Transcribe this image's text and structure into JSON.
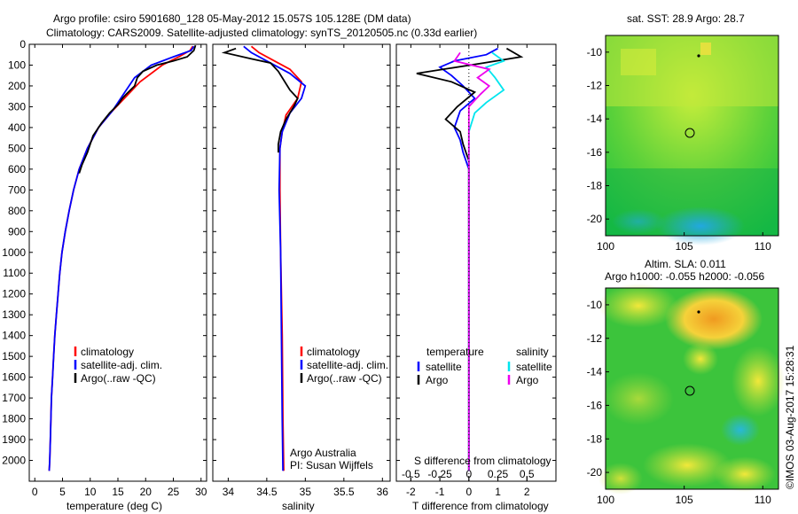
{
  "header": {
    "line1": "Argo profile: csiro 5901680_128 05-May-2012 15.057S 105.128E (DM data)",
    "line2": "Climatology: CARS2009. Satellite-adjusted climatology: synTS_20120505.nc (0.33d earlier)"
  },
  "credit": "Argo Australia\nPI: Susan Wijffels",
  "imos_stamp": "©IMOS 03-Aug-2017 15:28:31",
  "colors": {
    "climatology": "#ff0000",
    "satellite": "#0000ff",
    "argo": "#000000",
    "sal_satellite": "#00e5ee",
    "sal_argo": "#ee00ee"
  },
  "chart_data": [
    {
      "type": "line",
      "panel": "temperature",
      "xlabel": "temperature (deg C)",
      "ylim": [
        2100,
        0
      ],
      "xlim": [
        -1,
        31
      ],
      "xticks": [
        "0",
        "5",
        "10",
        "15",
        "20",
        "25",
        "30"
      ],
      "yticks": [
        "0",
        "100",
        "200",
        "300",
        "400",
        "500",
        "600",
        "700",
        "800",
        "900",
        "1000",
        "1100",
        "1200",
        "1300",
        "1400",
        "1500",
        "1600",
        "1700",
        "1800",
        "1900",
        "2000"
      ],
      "legend": [
        "climatology",
        "satellite-adj. clim.",
        "Argo(..raw -QC)"
      ],
      "series": [
        {
          "name": "climatology",
          "color": "#ff0000",
          "points": [
            [
              28.5,
              10
            ],
            [
              28,
              30
            ],
            [
              26,
              60
            ],
            [
              23,
              100
            ],
            [
              19,
              180
            ],
            [
              16.5,
              250
            ],
            [
              14,
              320
            ],
            [
              11.5,
              400
            ],
            [
              9.5,
              500
            ],
            [
              8,
              600
            ],
            [
              7,
              700
            ],
            [
              6.2,
              800
            ],
            [
              5.5,
              900
            ],
            [
              4.9,
              1000
            ],
            [
              4.5,
              1100
            ],
            [
              4.2,
              1200
            ],
            [
              3.9,
              1300
            ],
            [
              3.6,
              1400
            ],
            [
              3.4,
              1500
            ],
            [
              3.2,
              1600
            ],
            [
              3,
              1700
            ],
            [
              2.9,
              1800
            ],
            [
              2.8,
              1900
            ],
            [
              2.7,
              2000
            ],
            [
              2.6,
              2050
            ]
          ]
        },
        {
          "name": "satellite-adj. clim.",
          "color": "#0000ff",
          "points": [
            [
              28.7,
              10
            ],
            [
              28.2,
              30
            ],
            [
              25,
              60
            ],
            [
              21,
              100
            ],
            [
              18,
              160
            ],
            [
              16,
              240
            ],
            [
              14,
              320
            ],
            [
              11.5,
              400
            ],
            [
              9.5,
              500
            ],
            [
              8,
              600
            ],
            [
              7,
              700
            ],
            [
              6.2,
              800
            ],
            [
              5.5,
              900
            ],
            [
              4.9,
              1000
            ],
            [
              4.5,
              1100
            ],
            [
              4.2,
              1200
            ],
            [
              3.9,
              1300
            ],
            [
              3.6,
              1400
            ],
            [
              3.4,
              1500
            ],
            [
              3.2,
              1600
            ],
            [
              3,
              1700
            ],
            [
              2.9,
              1800
            ],
            [
              2.8,
              1900
            ],
            [
              2.7,
              2000
            ],
            [
              2.6,
              2050
            ]
          ]
        },
        {
          "name": "Argo(..raw -QC)",
          "color": "#000000",
          "points": [
            [
              29,
              5
            ],
            [
              28.7,
              30
            ],
            [
              27.5,
              60
            ],
            [
              25,
              80
            ],
            [
              22,
              100
            ],
            [
              19.5,
              130
            ],
            [
              18.5,
              160
            ],
            [
              18,
              200
            ],
            [
              16.5,
              240
            ],
            [
              15.8,
              260
            ],
            [
              15,
              290
            ],
            [
              13.5,
              330
            ],
            [
              12,
              380
            ],
            [
              10.5,
              440
            ],
            [
              9.5,
              520
            ],
            [
              8.5,
              580
            ],
            [
              8,
              620
            ]
          ]
        }
      ]
    },
    {
      "type": "line",
      "panel": "salinity",
      "xlabel": "salinity",
      "ylim": [
        2100,
        0
      ],
      "xlim": [
        33.8,
        36.1
      ],
      "xticks": [
        "34",
        "34.5",
        "35",
        "35.5",
        "36"
      ],
      "legend": [
        "climatology",
        "satellite-adj. clim.",
        "Argo(..raw -QC)"
      ],
      "series": [
        {
          "name": "climatology",
          "color": "#ff0000",
          "points": [
            [
              34.3,
              10
            ],
            [
              34.4,
              40
            ],
            [
              34.6,
              80
            ],
            [
              34.8,
              120
            ],
            [
              34.95,
              180
            ],
            [
              34.9,
              260
            ],
            [
              34.75,
              340
            ],
            [
              34.7,
              420
            ],
            [
              34.67,
              500
            ],
            [
              34.67,
              700
            ],
            [
              34.68,
              1000
            ],
            [
              34.7,
              1400
            ],
            [
              34.71,
              1800
            ],
            [
              34.72,
              2050
            ]
          ]
        },
        {
          "name": "satellite-adj. clim.",
          "color": "#0000ff",
          "points": [
            [
              34.2,
              10
            ],
            [
              34.3,
              40
            ],
            [
              34.5,
              80
            ],
            [
              34.8,
              140
            ],
            [
              35.0,
              200
            ],
            [
              34.95,
              260
            ],
            [
              34.8,
              330
            ],
            [
              34.7,
              420
            ],
            [
              34.67,
              500
            ],
            [
              34.66,
              700
            ],
            [
              34.68,
              1000
            ],
            [
              34.69,
              1400
            ],
            [
              34.7,
              1800
            ],
            [
              34.71,
              2050
            ]
          ]
        },
        {
          "name": "Argo(..raw -QC)",
          "color": "#000000",
          "points": [
            [
              34.1,
              20
            ],
            [
              33.95,
              40
            ],
            [
              34.3,
              70
            ],
            [
              34.55,
              90
            ],
            [
              34.65,
              130
            ],
            [
              34.7,
              160
            ],
            [
              34.8,
              220
            ],
            [
              34.9,
              260
            ],
            [
              34.85,
              300
            ],
            [
              34.75,
              360
            ],
            [
              34.68,
              420
            ],
            [
              34.65,
              480
            ],
            [
              34.65,
              520
            ]
          ]
        }
      ]
    },
    {
      "type": "line",
      "panel": "difference",
      "xlabel": "T difference from climatology",
      "x2label": "S difference from climatology",
      "ylim": [
        2100,
        0
      ],
      "xlim": [
        -2.5,
        3
      ],
      "xticks": [
        "-2",
        "-1",
        "0",
        "1",
        "2"
      ],
      "x2ticks": [
        "-0.5",
        "-0.25",
        "0",
        "0.25",
        "0.5"
      ],
      "legend_title_t": "temperature",
      "legend_title_s": "salinity",
      "legend": [
        "satellite",
        "Argo",
        "satellite",
        "Argo"
      ],
      "series": [
        {
          "name": "satellite",
          "color": "#0000ff",
          "points": [
            [
              1,
              20
            ],
            [
              0.6,
              50
            ],
            [
              -0.5,
              80
            ],
            [
              -1,
              110
            ],
            [
              -0.6,
              150
            ],
            [
              -0.2,
              200
            ],
            [
              0.2,
              260
            ],
            [
              -0.3,
              320
            ],
            [
              -0.5,
              400
            ],
            [
              -0.3,
              460
            ],
            [
              -0.2,
              520
            ],
            [
              0,
              600
            ],
            [
              0,
              2050
            ]
          ]
        },
        {
          "name": "Argo",
          "color": "#000000",
          "points": [
            [
              1.3,
              20
            ],
            [
              1.8,
              60
            ],
            [
              0.5,
              90
            ],
            [
              -1.8,
              140
            ],
            [
              -0.6,
              180
            ],
            [
              0.2,
              230
            ],
            [
              -0.4,
              300
            ],
            [
              -0.8,
              360
            ],
            [
              -0.3,
              420
            ],
            [
              -0.2,
              480
            ],
            [
              0,
              560
            ],
            [
              0,
              1400
            ],
            [
              0,
              2050
            ]
          ]
        },
        {
          "name": "satellite",
          "color": "#00e5ee",
          "points": [
            [
              0.8,
              40
            ],
            [
              1.2,
              80
            ],
            [
              0.6,
              110
            ],
            [
              0.9,
              160
            ],
            [
              1.2,
              220
            ],
            [
              0.6,
              280
            ],
            [
              0.2,
              330
            ],
            [
              0,
              420
            ],
            [
              0,
              2050
            ]
          ]
        },
        {
          "name": "Argo",
          "color": "#ee00ee",
          "points": [
            [
              -0.3,
              40
            ],
            [
              -0.5,
              80
            ],
            [
              0.7,
              120
            ],
            [
              0.3,
              160
            ],
            [
              0.7,
              200
            ],
            [
              0.4,
              240
            ],
            [
              0,
              300
            ],
            [
              0,
              2050
            ]
          ]
        }
      ]
    },
    {
      "type": "heatmap",
      "panel": "sst_map",
      "title": "sat. SST: 28.9 Argo: 28.7",
      "xlim": [
        100,
        111
      ],
      "ylim": [
        -21,
        -9
      ],
      "xticks": [
        "100",
        "105",
        "110"
      ],
      "yticks": [
        "-10",
        "-12",
        "-14",
        "-16",
        "-18",
        "-20"
      ],
      "marker": [
        105.128,
        -15.057
      ]
    },
    {
      "type": "heatmap",
      "panel": "sla_map",
      "title1": "Altim. SLA: 0.011",
      "title2": "Argo h1000: -0.055 h2000: -0.056",
      "xlim": [
        100,
        111
      ],
      "ylim": [
        -21,
        -9
      ],
      "xticks": [
        "100",
        "105",
        "110"
      ],
      "yticks": [
        "-10",
        "-12",
        "-14",
        "-16",
        "-18",
        "-20"
      ],
      "marker": [
        105.128,
        -15.057
      ]
    }
  ]
}
